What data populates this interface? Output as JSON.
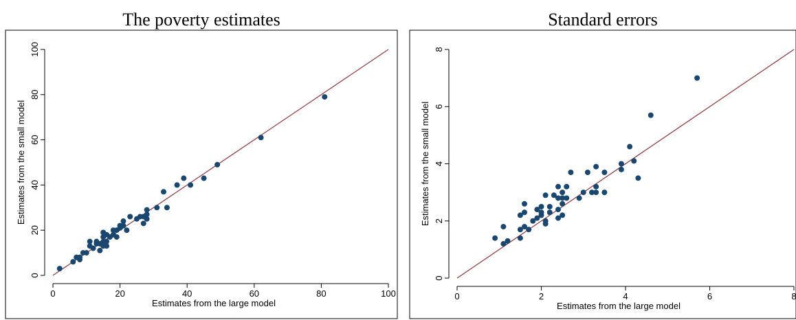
{
  "chart_data": [
    {
      "type": "scatter",
      "title": "The poverty estimates",
      "x_label": "Estimates from the large model",
      "y_label": "Estimates from the small model",
      "x": [
        2,
        6,
        7,
        8,
        8,
        9,
        10,
        11,
        11,
        12,
        13,
        13,
        14,
        14,
        15,
        15,
        15,
        15,
        16,
        16,
        16,
        17,
        18,
        18,
        19,
        19,
        20,
        20,
        21,
        21,
        22,
        23,
        25,
        26,
        27,
        27,
        28,
        28,
        28,
        31,
        33,
        34,
        37,
        39,
        41,
        45,
        49,
        62,
        81
      ],
      "y": [
        3,
        6,
        8,
        7,
        8,
        10,
        10,
        15,
        13,
        12,
        14,
        15,
        11,
        14,
        13,
        15,
        17,
        19,
        13,
        15,
        18,
        17,
        20,
        18,
        17,
        20,
        22,
        21,
        22,
        24,
        20,
        26,
        25,
        26,
        23,
        26,
        27,
        29,
        25,
        30,
        37,
        30,
        40,
        43,
        40,
        43,
        49,
        61,
        79
      ],
      "color": "#1a476f",
      "line_color": "#90353b",
      "xlim": [
        0,
        100
      ],
      "ylim": [
        0,
        100
      ],
      "xticks": [
        0,
        20,
        40,
        60,
        80,
        100
      ],
      "yticks": [
        0,
        20,
        40,
        60,
        80,
        100
      ]
    },
    {
      "type": "scatter",
      "title": "Standard errors",
      "x_label": "Estimates from the large model",
      "y_label": "Estimates from the small model",
      "x": [
        0.9,
        1.1,
        1.1,
        1.2,
        1.5,
        1.5,
        1.5,
        1.6,
        1.6,
        1.6,
        1.7,
        1.8,
        1.9,
        1.9,
        2,
        2,
        2,
        2.1,
        2.1,
        2.1,
        2.2,
        2.2,
        2.3,
        2.4,
        2.4,
        2.4,
        2.4,
        2.5,
        2.5,
        2.5,
        2.5,
        2.6,
        2.6,
        2.7,
        2.9,
        3.0,
        3.1,
        3.2,
        3.3,
        3.3,
        3.3,
        3.5,
        3.5,
        3.9,
        3.9,
        4.1,
        4.2,
        4.3,
        4.6,
        5.7
      ],
      "y": [
        1.4,
        1.2,
        1.8,
        1.3,
        1.4,
        1.7,
        2.2,
        1.8,
        2.6,
        2.3,
        1.7,
        2.0,
        2.1,
        2.4,
        2.3,
        2.5,
        2.2,
        1.9,
        2.0,
        2.9,
        2.3,
        2.5,
        2.9,
        2.4,
        2.8,
        3.2,
        2.1,
        2.6,
        2.8,
        3.0,
        2.2,
        2.8,
        3.2,
        3.7,
        2.8,
        3.0,
        3.7,
        3.0,
        3.9,
        3.2,
        3.0,
        3.0,
        3.7,
        4.0,
        3.8,
        4.6,
        4.1,
        3.5,
        5.7,
        7.0
      ],
      "color": "#1a476f",
      "line_color": "#90353b",
      "xlim": [
        0,
        8
      ],
      "ylim": [
        0,
        8
      ],
      "xticks": [
        0,
        2,
        4,
        6,
        8
      ],
      "yticks": [
        0,
        2,
        4,
        6,
        8
      ]
    }
  ]
}
